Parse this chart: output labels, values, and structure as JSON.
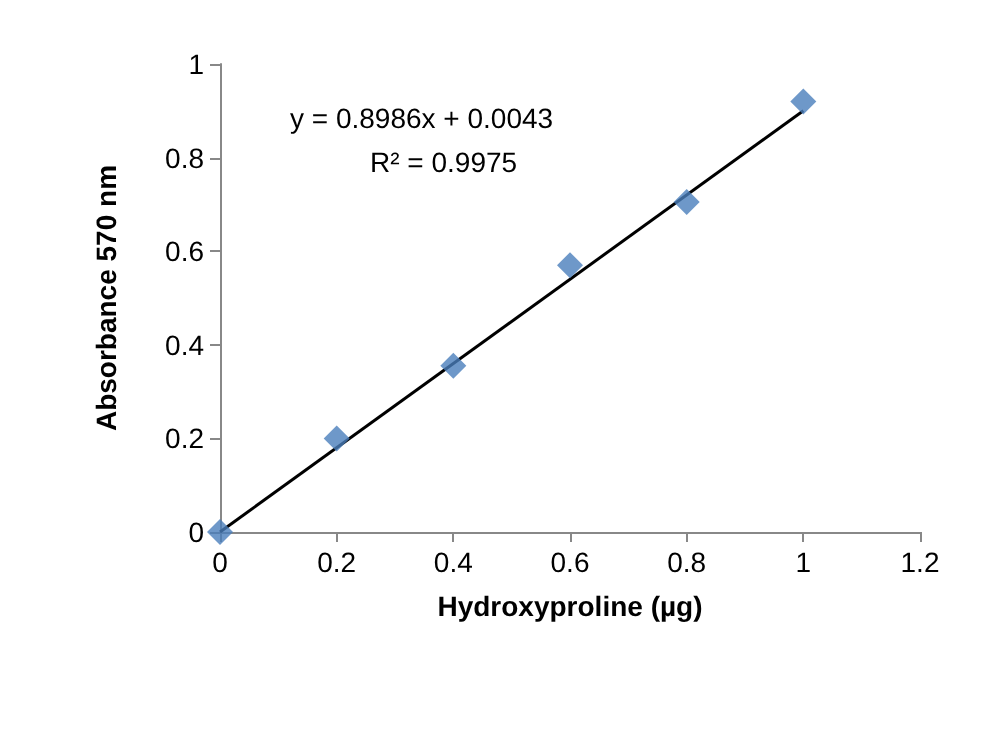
{
  "chart_data": {
    "type": "scatter",
    "xlabel": "Hydroxyproline (µg)",
    "ylabel": "Absorbance 570 nm",
    "annotations": [
      "y = 0.8986x + 0.0043",
      "R² = 0.9975"
    ],
    "series": [
      {
        "type": "scatter",
        "color": "#4a7ebb",
        "x": [
          0,
          0.2,
          0.4,
          0.6,
          0.8,
          1
        ],
        "values": [
          0,
          0.2,
          0.355,
          0.57,
          0.705,
          0.92
        ],
        "marker": "diamond"
      },
      {
        "type": "line",
        "color": "#000000",
        "x": [
          0,
          1
        ],
        "values": [
          0,
          0.9
        ],
        "marker": "none",
        "line_style": "solid"
      }
    ],
    "xlim": [
      0,
      1.2
    ],
    "xticks": [
      0,
      0.2,
      0.4,
      0.6,
      0.8,
      1,
      1.2
    ],
    "ylim": [
      0,
      1
    ],
    "yticks": [
      0,
      0.2,
      0.4,
      0.6,
      0.8,
      1
    ],
    "grid": false
  }
}
